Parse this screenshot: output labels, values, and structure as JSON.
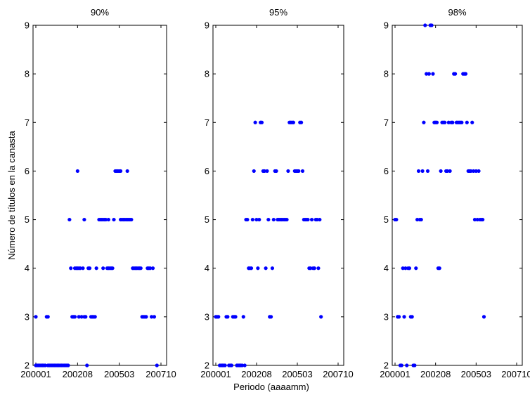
{
  "figure": {
    "ylabel": "Número de títulos en la canasta",
    "xlabel": "Periodo (aaaamm)"
  },
  "colors": {
    "marker": "#0000ff",
    "axes": "#000000",
    "background": "#ffffff"
  },
  "chart_data": [
    {
      "type": "scatter",
      "title": "90%",
      "xticks": [
        "200001",
        "200208",
        "200503",
        "200710"
      ],
      "yticks": [
        2,
        3,
        4,
        5,
        6,
        7,
        8,
        9
      ],
      "ylim": [
        2,
        9
      ],
      "grid": false,
      "points": [
        {
          "x": "200001",
          "y": 2
        },
        {
          "x": "200002",
          "y": 2
        },
        {
          "x": "200003",
          "y": 2
        },
        {
          "x": "200004",
          "y": 2
        },
        {
          "x": "200005",
          "y": 2
        },
        {
          "x": "200006",
          "y": 2
        },
        {
          "x": "200007",
          "y": 2
        },
        {
          "x": "200008",
          "y": 2
        },
        {
          "x": "200010",
          "y": 2
        },
        {
          "x": "200011",
          "y": 2
        },
        {
          "x": "200012",
          "y": 2
        },
        {
          "x": "200101",
          "y": 2
        },
        {
          "x": "200102",
          "y": 2
        },
        {
          "x": "200103",
          "y": 2
        },
        {
          "x": "200104",
          "y": 2
        },
        {
          "x": "200105",
          "y": 2
        },
        {
          "x": "200106",
          "y": 2
        },
        {
          "x": "200107",
          "y": 2
        },
        {
          "x": "200108",
          "y": 2
        },
        {
          "x": "200109",
          "y": 2
        },
        {
          "x": "200110",
          "y": 2
        },
        {
          "x": "200111",
          "y": 2
        },
        {
          "x": "200112",
          "y": 2
        },
        {
          "x": "200201",
          "y": 2
        },
        {
          "x": "200001",
          "y": 3
        },
        {
          "x": "200009",
          "y": 3
        },
        {
          "x": "200010",
          "y": 3
        },
        {
          "x": "200202",
          "y": 5
        },
        {
          "x": "200203",
          "y": 4
        },
        {
          "x": "200204",
          "y": 3
        },
        {
          "x": "200205",
          "y": 3
        },
        {
          "x": "200206",
          "y": 3
        },
        {
          "x": "200206",
          "y": 4
        },
        {
          "x": "200207",
          "y": 4
        },
        {
          "x": "200208",
          "y": 4
        },
        {
          "x": "200208",
          "y": 6
        },
        {
          "x": "200209",
          "y": 3
        },
        {
          "x": "200209",
          "y": 4
        },
        {
          "x": "200210",
          "y": 4
        },
        {
          "x": "200211",
          "y": 3
        },
        {
          "x": "200212",
          "y": 4
        },
        {
          "x": "200301",
          "y": 3
        },
        {
          "x": "200301",
          "y": 5
        },
        {
          "x": "200302",
          "y": 3
        },
        {
          "x": "200303",
          "y": 2
        },
        {
          "x": "200304",
          "y": 4
        },
        {
          "x": "200305",
          "y": 4
        },
        {
          "x": "200306",
          "y": 3
        },
        {
          "x": "200307",
          "y": 3
        },
        {
          "x": "200308",
          "y": 3
        },
        {
          "x": "200309",
          "y": 3
        },
        {
          "x": "200310",
          "y": 4
        },
        {
          "x": "200312",
          "y": 5
        },
        {
          "x": "200401",
          "y": 5
        },
        {
          "x": "200402",
          "y": 5
        },
        {
          "x": "200403",
          "y": 4
        },
        {
          "x": "200403",
          "y": 5
        },
        {
          "x": "200404",
          "y": 5
        },
        {
          "x": "200405",
          "y": 5
        },
        {
          "x": "200406",
          "y": 4
        },
        {
          "x": "200407",
          "y": 5
        },
        {
          "x": "200407",
          "y": 4
        },
        {
          "x": "200408",
          "y": 4
        },
        {
          "x": "200409",
          "y": 4
        },
        {
          "x": "200410",
          "y": 4
        },
        {
          "x": "200411",
          "y": 5
        },
        {
          "x": "200412",
          "y": 6
        },
        {
          "x": "200501",
          "y": 6
        },
        {
          "x": "200502",
          "y": 6
        },
        {
          "x": "200503",
          "y": 6
        },
        {
          "x": "200504",
          "y": 6
        },
        {
          "x": "200504",
          "y": 5
        },
        {
          "x": "200505",
          "y": 5
        },
        {
          "x": "200506",
          "y": 5
        },
        {
          "x": "200507",
          "y": 5
        },
        {
          "x": "200508",
          "y": 5
        },
        {
          "x": "200509",
          "y": 6
        },
        {
          "x": "200509",
          "y": 5
        },
        {
          "x": "200510",
          "y": 5
        },
        {
          "x": "200511",
          "y": 5
        },
        {
          "x": "200512",
          "y": 5
        },
        {
          "x": "200601",
          "y": 4
        },
        {
          "x": "200602",
          "y": 4
        },
        {
          "x": "200603",
          "y": 4
        },
        {
          "x": "200604",
          "y": 4
        },
        {
          "x": "200605",
          "y": 4
        },
        {
          "x": "200606",
          "y": 4
        },
        {
          "x": "200607",
          "y": 4
        },
        {
          "x": "200608",
          "y": 3
        },
        {
          "x": "200609",
          "y": 3
        },
        {
          "x": "200610",
          "y": 3
        },
        {
          "x": "200611",
          "y": 3
        },
        {
          "x": "200612",
          "y": 4
        },
        {
          "x": "200701",
          "y": 4
        },
        {
          "x": "200702",
          "y": 4
        },
        {
          "x": "200703",
          "y": 3
        },
        {
          "x": "200704",
          "y": 4
        },
        {
          "x": "200705",
          "y": 3
        },
        {
          "x": "200707",
          "y": 2
        }
      ]
    },
    {
      "type": "scatter",
      "title": "95%",
      "xticks": [
        "200001",
        "200208",
        "200503",
        "200710"
      ],
      "yticks": [
        2,
        3,
        4,
        5,
        6,
        7,
        8,
        9
      ],
      "ylim": [
        2,
        9
      ],
      "grid": false,
      "points": [
        {
          "x": "200001",
          "y": 3
        },
        {
          "x": "200002",
          "y": 3
        },
        {
          "x": "200003",
          "y": 3
        },
        {
          "x": "200004",
          "y": 2
        },
        {
          "x": "200005",
          "y": 2
        },
        {
          "x": "200006",
          "y": 2
        },
        {
          "x": "200007",
          "y": 2
        },
        {
          "x": "200008",
          "y": 2
        },
        {
          "x": "200009",
          "y": 3
        },
        {
          "x": "200010",
          "y": 3
        },
        {
          "x": "200011",
          "y": 2
        },
        {
          "x": "200012",
          "y": 2
        },
        {
          "x": "200101",
          "y": 2
        },
        {
          "x": "200102",
          "y": 3
        },
        {
          "x": "200103",
          "y": 3
        },
        {
          "x": "200104",
          "y": 3
        },
        {
          "x": "200105",
          "y": 2
        },
        {
          "x": "200106",
          "y": 2
        },
        {
          "x": "200107",
          "y": 2
        },
        {
          "x": "200108",
          "y": 2
        },
        {
          "x": "200109",
          "y": 2
        },
        {
          "x": "200110",
          "y": 3
        },
        {
          "x": "200111",
          "y": 2
        },
        {
          "x": "200112",
          "y": 5
        },
        {
          "x": "200201",
          "y": 5
        },
        {
          "x": "200202",
          "y": 4
        },
        {
          "x": "200203",
          "y": 4
        },
        {
          "x": "200204",
          "y": 4
        },
        {
          "x": "200205",
          "y": 5
        },
        {
          "x": "200206",
          "y": 6
        },
        {
          "x": "200207",
          "y": 7
        },
        {
          "x": "200208",
          "y": 5
        },
        {
          "x": "200209",
          "y": 4
        },
        {
          "x": "200210",
          "y": 5
        },
        {
          "x": "200211",
          "y": 7
        },
        {
          "x": "200212",
          "y": 7
        },
        {
          "x": "200301",
          "y": 6
        },
        {
          "x": "200302",
          "y": 6
        },
        {
          "x": "200303",
          "y": 4
        },
        {
          "x": "200304",
          "y": 6
        },
        {
          "x": "200305",
          "y": 5
        },
        {
          "x": "200306",
          "y": 3
        },
        {
          "x": "200307",
          "y": 3
        },
        {
          "x": "200308",
          "y": 4
        },
        {
          "x": "200309",
          "y": 5
        },
        {
          "x": "200310",
          "y": 6
        },
        {
          "x": "200311",
          "y": 6
        },
        {
          "x": "200312",
          "y": 5
        },
        {
          "x": "200401",
          "y": 5
        },
        {
          "x": "200402",
          "y": 5
        },
        {
          "x": "200403",
          "y": 5
        },
        {
          "x": "200404",
          "y": 5
        },
        {
          "x": "200405",
          "y": 5
        },
        {
          "x": "200406",
          "y": 5
        },
        {
          "x": "200407",
          "y": 5
        },
        {
          "x": "200408",
          "y": 6
        },
        {
          "x": "200409",
          "y": 7
        },
        {
          "x": "200410",
          "y": 7
        },
        {
          "x": "200411",
          "y": 7
        },
        {
          "x": "200412",
          "y": 7
        },
        {
          "x": "200501",
          "y": 6
        },
        {
          "x": "200502",
          "y": 6
        },
        {
          "x": "200503",
          "y": 6
        },
        {
          "x": "200504",
          "y": 6
        },
        {
          "x": "200505",
          "y": 7
        },
        {
          "x": "200506",
          "y": 7
        },
        {
          "x": "200507",
          "y": 6
        },
        {
          "x": "200508",
          "y": 5
        },
        {
          "x": "200509",
          "y": 5
        },
        {
          "x": "200510",
          "y": 5
        },
        {
          "x": "200511",
          "y": 5
        },
        {
          "x": "200512",
          "y": 4
        },
        {
          "x": "200601",
          "y": 4
        },
        {
          "x": "200602",
          "y": 5
        },
        {
          "x": "200603",
          "y": 4
        },
        {
          "x": "200604",
          "y": 4
        },
        {
          "x": "200605",
          "y": 5
        },
        {
          "x": "200606",
          "y": 5
        },
        {
          "x": "200607",
          "y": 4
        },
        {
          "x": "200608",
          "y": 5
        },
        {
          "x": "200609",
          "y": 3
        }
      ]
    },
    {
      "type": "scatter",
      "title": "98%",
      "xticks": [
        "200001",
        "200208",
        "200503",
        "200710"
      ],
      "yticks": [
        2,
        3,
        4,
        5,
        6,
        7,
        8,
        9
      ],
      "ylim": [
        2,
        9
      ],
      "grid": false,
      "points": [
        {
          "x": "200001",
          "y": 5
        },
        {
          "x": "200002",
          "y": 5
        },
        {
          "x": "200003",
          "y": 3
        },
        {
          "x": "200004",
          "y": 3
        },
        {
          "x": "200005",
          "y": 2
        },
        {
          "x": "200006",
          "y": 2
        },
        {
          "x": "200007",
          "y": 4
        },
        {
          "x": "200008",
          "y": 3
        },
        {
          "x": "200009",
          "y": 4
        },
        {
          "x": "200010",
          "y": 2
        },
        {
          "x": "200011",
          "y": 4
        },
        {
          "x": "200012",
          "y": 4
        },
        {
          "x": "200101",
          "y": 3
        },
        {
          "x": "200102",
          "y": 3
        },
        {
          "x": "200103",
          "y": 2
        },
        {
          "x": "200104",
          "y": 2
        },
        {
          "x": "200105",
          "y": 4
        },
        {
          "x": "200106",
          "y": 5
        },
        {
          "x": "200107",
          "y": 6
        },
        {
          "x": "200108",
          "y": 5
        },
        {
          "x": "200109",
          "y": 5
        },
        {
          "x": "200110",
          "y": 6
        },
        {
          "x": "200111",
          "y": 7
        },
        {
          "x": "200112",
          "y": 9
        },
        {
          "x": "200201",
          "y": 8
        },
        {
          "x": "200202",
          "y": 6
        },
        {
          "x": "200203",
          "y": 8
        },
        {
          "x": "200204",
          "y": 9
        },
        {
          "x": "200205",
          "y": 9
        },
        {
          "x": "200206",
          "y": 8
        },
        {
          "x": "200207",
          "y": 7
        },
        {
          "x": "200208",
          "y": 7
        },
        {
          "x": "200209",
          "y": 7
        },
        {
          "x": "200210",
          "y": 4
        },
        {
          "x": "200211",
          "y": 4
        },
        {
          "x": "200212",
          "y": 6
        },
        {
          "x": "200301",
          "y": 7
        },
        {
          "x": "200302",
          "y": 7
        },
        {
          "x": "200303",
          "y": 7
        },
        {
          "x": "200304",
          "y": 6
        },
        {
          "x": "200305",
          "y": 6
        },
        {
          "x": "200306",
          "y": 7
        },
        {
          "x": "200307",
          "y": 6
        },
        {
          "x": "200308",
          "y": 7
        },
        {
          "x": "200309",
          "y": 7
        },
        {
          "x": "200310",
          "y": 8
        },
        {
          "x": "200311",
          "y": 8
        },
        {
          "x": "200312",
          "y": 7
        },
        {
          "x": "200401",
          "y": 7
        },
        {
          "x": "200402",
          "y": 7
        },
        {
          "x": "200403",
          "y": 7
        },
        {
          "x": "200404",
          "y": 7
        },
        {
          "x": "200405",
          "y": 8
        },
        {
          "x": "200406",
          "y": 8
        },
        {
          "x": "200407",
          "y": 8
        },
        {
          "x": "200408",
          "y": 7
        },
        {
          "x": "200409",
          "y": 6
        },
        {
          "x": "200410",
          "y": 6
        },
        {
          "x": "200411",
          "y": 6
        },
        {
          "x": "200412",
          "y": 7
        },
        {
          "x": "200501",
          "y": 6
        },
        {
          "x": "200502",
          "y": 5
        },
        {
          "x": "200503",
          "y": 6
        },
        {
          "x": "200504",
          "y": 5
        },
        {
          "x": "200505",
          "y": 6
        },
        {
          "x": "200506",
          "y": 5
        },
        {
          "x": "200507",
          "y": 5
        },
        {
          "x": "200508",
          "y": 5
        },
        {
          "x": "200509",
          "y": 3
        }
      ]
    }
  ]
}
